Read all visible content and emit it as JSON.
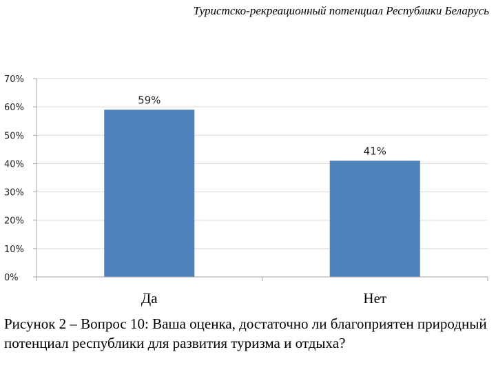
{
  "header": {
    "running_title": "Туристско-рекреационный потенциал Республики Беларусь"
  },
  "chart_data": {
    "type": "bar",
    "title": "",
    "xlabel": "",
    "ylabel": "",
    "categories": [
      "Да",
      "Нет"
    ],
    "values": [
      59,
      41
    ],
    "data_labels": [
      "59%",
      "41%"
    ],
    "ylim": [
      0,
      70
    ],
    "yticks": [
      0,
      10,
      20,
      30,
      40,
      50,
      60,
      70
    ],
    "ytick_labels": [
      "0%",
      "10%",
      "20%",
      "30%",
      "40%",
      "50%",
      "60%",
      "70%"
    ],
    "grid": true,
    "legend": "none",
    "bar_color": "#4f81bd",
    "grid_color": "#d9d9d9",
    "axis_color": "#a6a6a6"
  },
  "caption": {
    "text": "Рисунок 2 – Вопрос 10: Ваша оценка, достаточно ли благоприятен природный потенциал республики для развития туризма и отдыха?"
  }
}
